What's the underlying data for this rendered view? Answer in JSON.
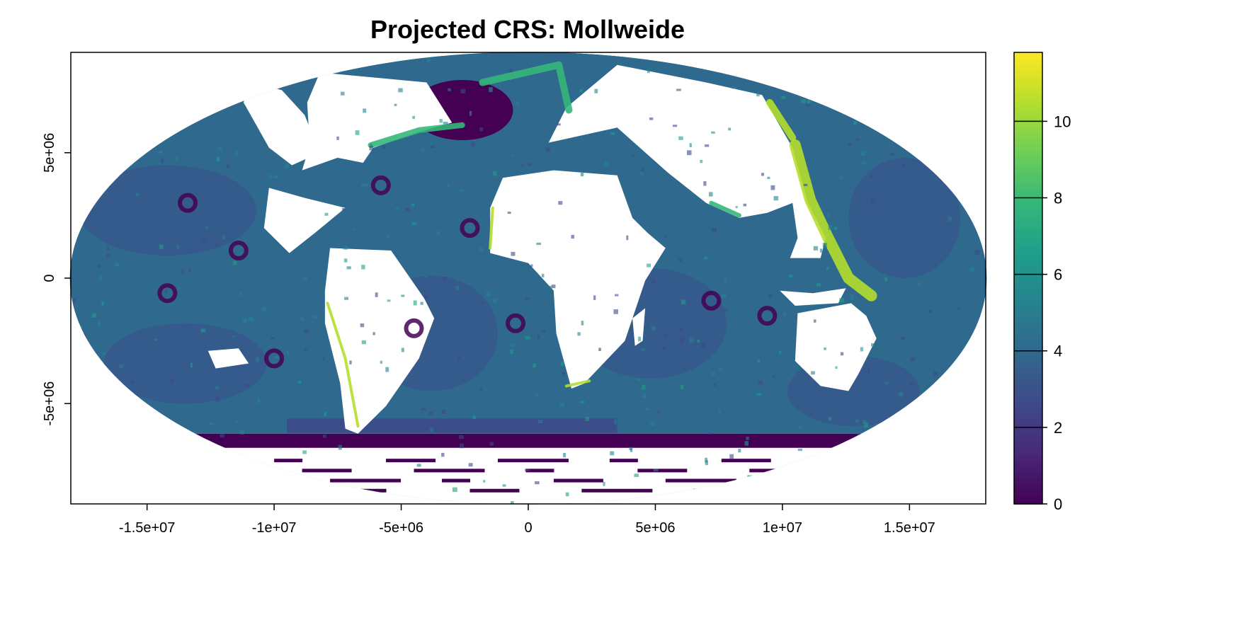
{
  "chart_data": {
    "type": "heatmap",
    "title": "Projected CRS: Mollweide",
    "xlabel": "",
    "ylabel": "",
    "xlim": [
      -18000000,
      18000000
    ],
    "ylim": [
      -9000000,
      9000000
    ],
    "x_ticks": [
      {
        "value": -15000000,
        "label": "-1.5e+07"
      },
      {
        "value": -10000000,
        "label": "-1e+07"
      },
      {
        "value": -5000000,
        "label": "-5e+06"
      },
      {
        "value": 0,
        "label": "0"
      },
      {
        "value": 5000000,
        "label": "5e+06"
      },
      {
        "value": 10000000,
        "label": "1e+07"
      },
      {
        "value": 15000000,
        "label": "1.5e+07"
      }
    ],
    "y_ticks": [
      {
        "value": -5000000,
        "label": "-5e+06"
      },
      {
        "value": 0,
        "label": "0"
      },
      {
        "value": 5000000,
        "label": "5e+06"
      }
    ],
    "colorbar": {
      "range": [
        0,
        11.8
      ],
      "ticks": [
        {
          "value": 0,
          "label": "0"
        },
        {
          "value": 2,
          "label": "2"
        },
        {
          "value": 4,
          "label": "4"
        },
        {
          "value": 6,
          "label": "6"
        },
        {
          "value": 8,
          "label": "8"
        },
        {
          "value": 10,
          "label": "10"
        }
      ],
      "palette": [
        "#440154",
        "#482878",
        "#3e4a89",
        "#31688e",
        "#26828e",
        "#1f9e89",
        "#35b779",
        "#6ece58",
        "#b5de2b",
        "#fde725"
      ]
    },
    "grid": false,
    "legend": "right"
  },
  "colors": {
    "ocean_mid": "#2f6a8e",
    "ocean_dark": "#3b4d8a",
    "ocean_deep": "#440154",
    "coast_bright": "#b5de2b",
    "coast_green": "#35b779",
    "land": "#ffffff"
  }
}
